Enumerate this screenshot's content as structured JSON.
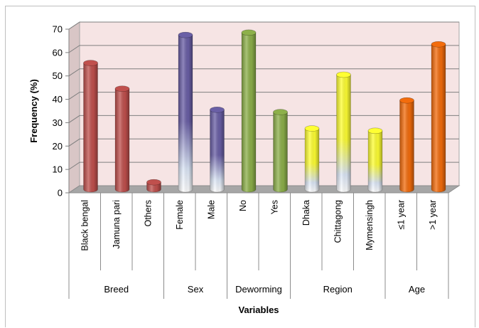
{
  "chart_data": {
    "type": "bar",
    "title": "",
    "xlabel": "Variables",
    "ylabel": "Frequency (%)",
    "ylim": [
      0,
      70
    ],
    "yticks": [
      0,
      10,
      20,
      30,
      40,
      50,
      60,
      70
    ],
    "grid": true,
    "legend": "none",
    "categories": [
      "Black bengal",
      "Jamuna pari",
      "Others",
      "Female",
      "Male",
      "No",
      "Yes",
      "Dhaka",
      "Chittagong",
      "Mymensingh",
      "≤1 year",
      ">1 year"
    ],
    "values": [
      54,
      43,
      3,
      66,
      34,
      67,
      33,
      26,
      49,
      25,
      38,
      62
    ],
    "groups": [
      {
        "label": "Breed",
        "count": 3,
        "color": "#c0504d"
      },
      {
        "label": "Sex",
        "count": 2,
        "color": "#6a5fa6"
      },
      {
        "label": "Deworming",
        "count": 2,
        "color": "#8db04a"
      },
      {
        "label": "Region",
        "count": 3,
        "color": "#ffff33"
      },
      {
        "label": "Age",
        "count": 2,
        "color": "#f36c0c"
      }
    ],
    "plot_background": "#f6e4e4"
  }
}
